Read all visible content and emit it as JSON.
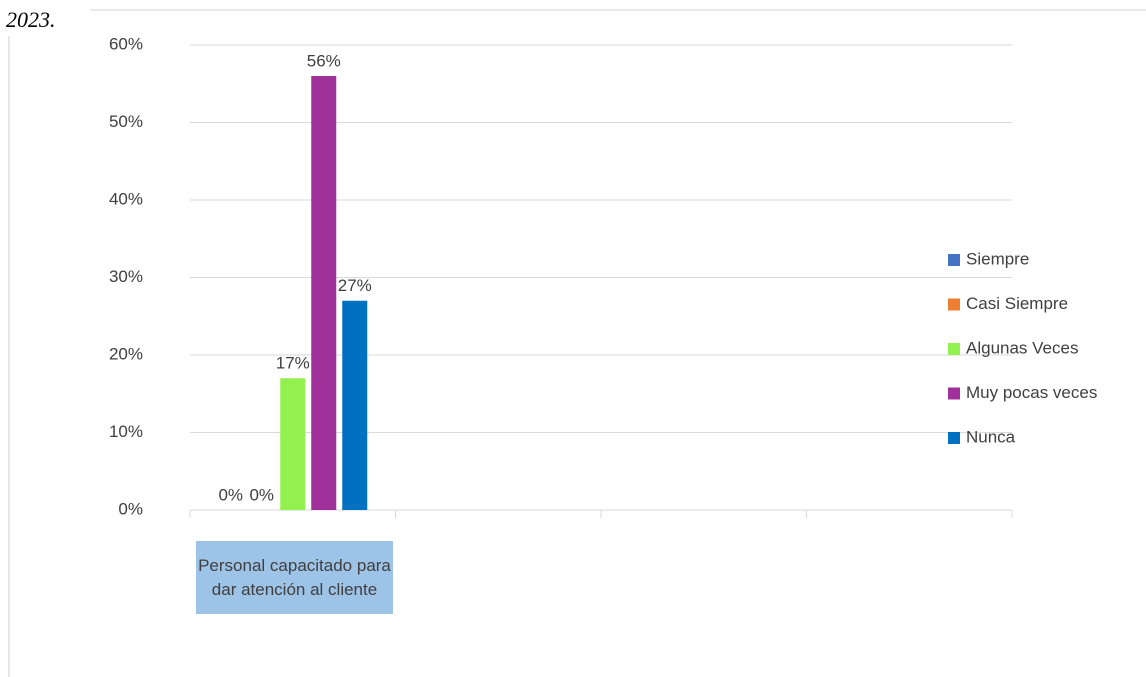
{
  "chart_data": {
    "type": "bar",
    "title": "2023.",
    "categories": [
      "Personal capacitado para dar atención al cliente",
      null,
      null,
      null
    ],
    "series": [
      {
        "name": "Siempre",
        "color": "#4472c4",
        "values": [
          0,
          null,
          null,
          null
        ],
        "value_labels": [
          "0%",
          null,
          null,
          null
        ]
      },
      {
        "name": "Casi Siempre",
        "color": "#ed7d31",
        "values": [
          0,
          null,
          null,
          null
        ],
        "value_labels": [
          "0%",
          null,
          null,
          null
        ]
      },
      {
        "name": "Algunas Veces",
        "color": "#92f04f",
        "values": [
          17,
          null,
          null,
          null
        ],
        "value_labels": [
          "17%",
          null,
          null,
          null
        ]
      },
      {
        "name": "Muy pocas veces",
        "color": "#a0309a",
        "values": [
          56,
          null,
          null,
          null
        ],
        "value_labels": [
          "56%",
          null,
          null,
          null
        ]
      },
      {
        "name": "Nunca",
        "color": "#0070c0",
        "values": [
          27,
          null,
          null,
          null
        ],
        "value_labels": [
          "27%",
          null,
          null,
          null
        ]
      }
    ],
    "ylim": [
      0,
      60
    ],
    "yticks": [
      {
        "value": 0,
        "label": "0%"
      },
      {
        "value": 10,
        "label": "10%"
      },
      {
        "value": 20,
        "label": "20%"
      },
      {
        "value": 30,
        "label": "30%"
      },
      {
        "value": 40,
        "label": "40%"
      },
      {
        "value": 50,
        "label": "50%"
      },
      {
        "value": 60,
        "label": "60%"
      }
    ],
    "grid": true,
    "legend": "right"
  }
}
